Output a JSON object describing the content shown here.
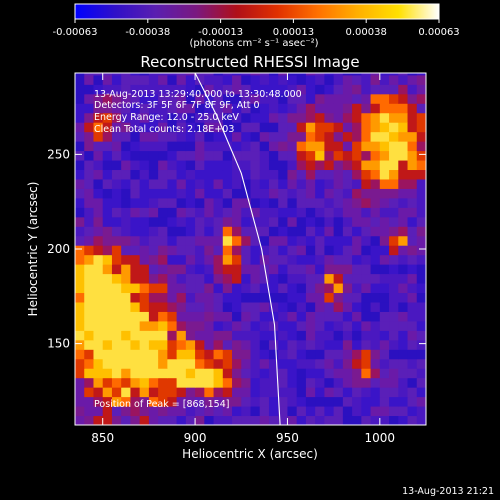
{
  "colorbar": {
    "ticks": [
      "-0.00063",
      "-0.00038",
      "-0.00013",
      "0.00013",
      "0.00038",
      "0.00063"
    ],
    "unit_label": "(photons cm⁻² s⁻¹ asec⁻²)"
  },
  "annotations": {
    "time_range": "13-Aug-2013 13:29:40.000 to 13:30:48.000",
    "detectors": "Detectors: 3F 5F 6F 7F 8F 9F, Att 0",
    "energy": "Energy Range: 12.0 - 25.0 keV",
    "clean": "Clean     Total counts: 2.18E+03",
    "peak": "Position of Peak = [868,154]"
  },
  "footer": {
    "timestamp": "13-Aug-2013 21:21"
  },
  "chart_data": {
    "type": "heatmap",
    "title": "Reconstructed RHESSI Image",
    "xlabel": "Heliocentric X (arcsec)",
    "ylabel": "Heliocentric Y (arcsec)",
    "xlim": [
      835,
      1025
    ],
    "ylim": [
      107,
      293
    ],
    "x_ticks": [
      850,
      900,
      950,
      1000
    ],
    "y_ticks": [
      150,
      200,
      250
    ],
    "x_tick_labels": [
      "850",
      "900",
      "950",
      "1000"
    ],
    "y_tick_labels": [
      "150",
      "200",
      "250"
    ],
    "color_range": [
      -0.00063,
      0.00063
    ],
    "colormap": [
      "#0000ff",
      "#3010c8",
      "#5a1fb0",
      "#7a1880",
      "#b00f18",
      "#e03000",
      "#ff7000",
      "#ffb000",
      "#ffe000",
      "#ffffff"
    ],
    "peak_position": [
      868,
      154
    ],
    "limb_curve": [
      [
        900,
        293
      ],
      [
        912,
        270
      ],
      [
        925,
        240
      ],
      [
        936,
        200
      ],
      [
        943,
        160
      ],
      [
        946,
        107
      ]
    ],
    "bright_regions": [
      {
        "x": 862,
        "y": 150,
        "rx": 34,
        "ry": 40,
        "level": 1.0
      },
      {
        "x": 845,
        "y": 180,
        "rx": 18,
        "ry": 25,
        "level": 0.8
      },
      {
        "x": 905,
        "y": 135,
        "rx": 25,
        "ry": 15,
        "level": 0.7
      },
      {
        "x": 920,
        "y": 200,
        "rx": 8,
        "ry": 18,
        "level": 0.75
      },
      {
        "x": 1005,
        "y": 255,
        "rx": 22,
        "ry": 30,
        "level": 0.9
      },
      {
        "x": 965,
        "y": 255,
        "rx": 15,
        "ry": 18,
        "level": 0.6
      },
      {
        "x": 975,
        "y": 180,
        "rx": 8,
        "ry": 12,
        "level": 0.6
      },
      {
        "x": 990,
        "y": 140,
        "rx": 10,
        "ry": 10,
        "level": 0.6
      },
      {
        "x": 850,
        "y": 265,
        "rx": 10,
        "ry": 14,
        "level": 0.5
      },
      {
        "x": 1010,
        "y": 205,
        "rx": 8,
        "ry": 10,
        "level": 0.5
      }
    ]
  }
}
